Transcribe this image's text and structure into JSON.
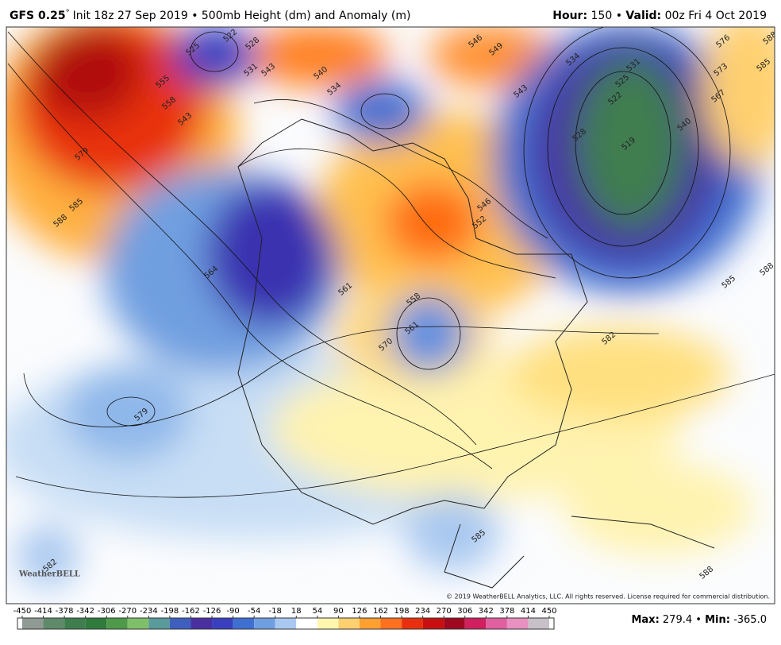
{
  "header": {
    "model": "GFS 0.25",
    "degree": "°",
    "init": "Init 18z 27 Sep 2019 • 500mb Height (dm) and Anomaly (m)",
    "hour_label": "Hour:",
    "hour": 150,
    "separator": "•",
    "valid_label": "Valid:",
    "valid": "00z Fri 4 Oct 2019"
  },
  "map": {
    "contour_labels": [
      522,
      525,
      528,
      531,
      543,
      540,
      534,
      555,
      558,
      543,
      579,
      585,
      588,
      546,
      549,
      543,
      534,
      531,
      525,
      522,
      519,
      528,
      540,
      567,
      573,
      576,
      585,
      588,
      585,
      588,
      582,
      564,
      561,
      558,
      561,
      570,
      579,
      585,
      588,
      582,
      546,
      552
    ],
    "copyright": "© 2019 WeatherBELL Analytics, LLC. All rights reserved. License required for commercial distribution.",
    "logo": "WeatherBELL"
  },
  "colorbar": {
    "ticks": [
      -450,
      -414,
      -378,
      -342,
      -306,
      -270,
      -234,
      -198,
      -162,
      -126,
      -90,
      -54,
      -18,
      18,
      54,
      90,
      126,
      162,
      198,
      234,
      270,
      306,
      342,
      378,
      414,
      450
    ],
    "colors": [
      "#8f9a95",
      "#5f8a6a",
      "#3f7d4f",
      "#2f7a3c",
      "#4e9a4a",
      "#7fbf6a",
      "#5a9a9a",
      "#3f5fbf",
      "#4a2fa0",
      "#3a3fbf",
      "#3f6fd0",
      "#6f9fe0",
      "#a8c8f0",
      "#ffffff",
      "#fff7b0",
      "#ffd070",
      "#ffa030",
      "#ff7020",
      "#e83010",
      "#c81010",
      "#a00820",
      "#d02060",
      "#e060a0",
      "#e890c0",
      "#c8c0c8"
    ]
  },
  "stats": {
    "max_label": "Max:",
    "max": "279.4",
    "separator": "•",
    "min_label": "Min:",
    "min": "-365.0"
  }
}
